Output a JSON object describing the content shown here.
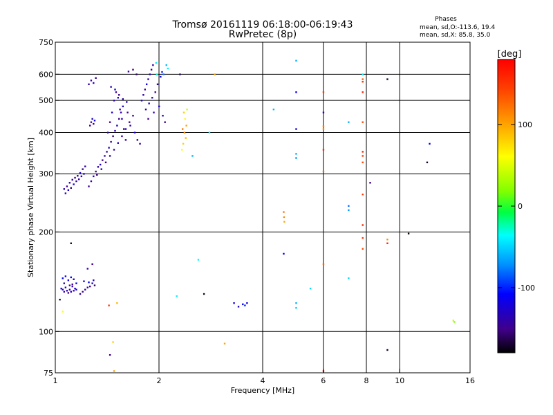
{
  "colors": {
    "frame": "#000000",
    "background": "#ffffff"
  },
  "chart_data": {
    "type": "scatter",
    "title": "Tromsø 20161119 06:18:00-06:19:43",
    "subtitle": "RwPretec (8p)",
    "xlabel": "Frequency [MHz]",
    "ylabel": "Stationary phase Virtual Height [km]",
    "x_scale": "log",
    "y_scale": "log",
    "xlim": [
      1,
      16
    ],
    "ylim": [
      75,
      750
    ],
    "x_ticks": [
      "1",
      "2",
      "4",
      "6",
      "8",
      "10",
      "16"
    ],
    "x_tick_values": [
      1,
      2,
      4,
      6,
      8,
      10,
      16
    ],
    "x_gridlines": [
      2,
      4,
      6,
      8,
      10
    ],
    "y_ticks": [
      "75",
      "100",
      "200",
      "300",
      "400",
      "500",
      "600",
      "750"
    ],
    "y_tick_values": [
      75,
      100,
      200,
      300,
      400,
      500,
      600,
      750
    ],
    "y_gridlines": [
      100,
      200,
      300,
      400,
      500,
      600
    ],
    "legend": {
      "title": "Phases",
      "lines": [
        "mean, sd,O:-113.6, 19.4",
        "mean, sd,X:  85.8, 35.0"
      ]
    },
    "colorbar": {
      "label": "[deg]",
      "ticks": [
        "100",
        "0",
        "-100"
      ],
      "tick_values": [
        100,
        0,
        -100
      ],
      "range": [
        -180,
        180
      ],
      "colormap": "rainbow"
    },
    "points": [
      {
        "f": 1.03,
        "h": 125,
        "p": -170
      },
      {
        "f": 1.04,
        "h": 135,
        "p": -135
      },
      {
        "f": 1.05,
        "h": 134,
        "p": -135
      },
      {
        "f": 1.06,
        "h": 132,
        "p": -140
      },
      {
        "f": 1.07,
        "h": 136,
        "p": -130
      },
      {
        "f": 1.08,
        "h": 133,
        "p": -140
      },
      {
        "f": 1.09,
        "h": 131,
        "p": -150
      },
      {
        "f": 1.1,
        "h": 134,
        "p": -135
      },
      {
        "f": 1.11,
        "h": 132,
        "p": -130
      },
      {
        "f": 1.12,
        "h": 137,
        "p": -140
      },
      {
        "f": 1.13,
        "h": 133,
        "p": -145
      },
      {
        "f": 1.14,
        "h": 135,
        "p": -130
      },
      {
        "f": 1.15,
        "h": 134,
        "p": -120
      },
      {
        "f": 1.05,
        "h": 145,
        "p": -110
      },
      {
        "f": 1.07,
        "h": 147,
        "p": -115
      },
      {
        "f": 1.09,
        "h": 143,
        "p": -120
      },
      {
        "f": 1.11,
        "h": 146,
        "p": -110
      },
      {
        "f": 1.13,
        "h": 144,
        "p": -125
      },
      {
        "f": 1.15,
        "h": 140,
        "p": -115
      },
      {
        "f": 1.06,
        "h": 140,
        "p": -140
      },
      {
        "f": 1.1,
        "h": 138,
        "p": -145
      },
      {
        "f": 1.12,
        "h": 139,
        "p": -150
      },
      {
        "f": 1.18,
        "h": 130,
        "p": -140
      },
      {
        "f": 1.2,
        "h": 132,
        "p": -150
      },
      {
        "f": 1.22,
        "h": 134,
        "p": -145
      },
      {
        "f": 1.24,
        "h": 136,
        "p": -130
      },
      {
        "f": 1.26,
        "h": 137,
        "p": -150
      },
      {
        "f": 1.28,
        "h": 140,
        "p": -130
      },
      {
        "f": 1.3,
        "h": 138,
        "p": -160
      },
      {
        "f": 1.21,
        "h": 142,
        "p": -120
      },
      {
        "f": 1.25,
        "h": 141,
        "p": -110
      },
      {
        "f": 1.29,
        "h": 143,
        "p": -130
      },
      {
        "f": 1.24,
        "h": 155,
        "p": -140
      },
      {
        "f": 1.28,
        "h": 160,
        "p": -150
      },
      {
        "f": 1.11,
        "h": 185,
        "p": -170
      },
      {
        "f": 1.05,
        "h": 115,
        "p": 60
      },
      {
        "f": 1.43,
        "h": 120,
        "p": 150
      },
      {
        "f": 1.51,
        "h": 122,
        "p": 90
      },
      {
        "f": 1.44,
        "h": 85,
        "p": -150
      },
      {
        "f": 1.47,
        "h": 93,
        "p": 80
      },
      {
        "f": 1.48,
        "h": 76,
        "p": 100
      },
      {
        "f": 1.06,
        "h": 270,
        "p": -140
      },
      {
        "f": 1.07,
        "h": 262,
        "p": -130
      },
      {
        "f": 1.08,
        "h": 275,
        "p": -150
      },
      {
        "f": 1.09,
        "h": 268,
        "p": -120
      },
      {
        "f": 1.1,
        "h": 282,
        "p": -140
      },
      {
        "f": 1.11,
        "h": 272,
        "p": -160
      },
      {
        "f": 1.12,
        "h": 288,
        "p": -135
      },
      {
        "f": 1.13,
        "h": 279,
        "p": -125
      },
      {
        "f": 1.14,
        "h": 292,
        "p": -150
      },
      {
        "f": 1.15,
        "h": 285,
        "p": -140
      },
      {
        "f": 1.16,
        "h": 296,
        "p": -130
      },
      {
        "f": 1.17,
        "h": 289,
        "p": -145
      },
      {
        "f": 1.18,
        "h": 302,
        "p": -130
      },
      {
        "f": 1.19,
        "h": 295,
        "p": -140
      },
      {
        "f": 1.2,
        "h": 310,
        "p": -155
      },
      {
        "f": 1.21,
        "h": 300,
        "p": -130
      },
      {
        "f": 1.22,
        "h": 316,
        "p": -140
      },
      {
        "f": 1.26,
        "h": 420,
        "p": -140
      },
      {
        "f": 1.27,
        "h": 430,
        "p": -150
      },
      {
        "f": 1.28,
        "h": 440,
        "p": -130
      },
      {
        "f": 1.29,
        "h": 425,
        "p": -145
      },
      {
        "f": 1.3,
        "h": 435,
        "p": -120
      },
      {
        "f": 1.25,
        "h": 560,
        "p": -140
      },
      {
        "f": 1.27,
        "h": 575,
        "p": -150
      },
      {
        "f": 1.29,
        "h": 565,
        "p": -130
      },
      {
        "f": 1.31,
        "h": 585,
        "p": -145
      },
      {
        "f": 1.25,
        "h": 275,
        "p": -150
      },
      {
        "f": 1.27,
        "h": 285,
        "p": -140
      },
      {
        "f": 1.29,
        "h": 295,
        "p": -130
      },
      {
        "f": 1.31,
        "h": 305,
        "p": -150
      },
      {
        "f": 1.33,
        "h": 315,
        "p": -140
      },
      {
        "f": 1.35,
        "h": 320,
        "p": -130
      },
      {
        "f": 1.37,
        "h": 330,
        "p": -150
      },
      {
        "f": 1.39,
        "h": 340,
        "p": -140
      },
      {
        "f": 1.41,
        "h": 350,
        "p": -150
      },
      {
        "f": 1.43,
        "h": 360,
        "p": -130
      },
      {
        "f": 1.45,
        "h": 375,
        "p": -145
      },
      {
        "f": 1.47,
        "h": 390,
        "p": -160
      },
      {
        "f": 1.49,
        "h": 405,
        "p": -140
      },
      {
        "f": 1.51,
        "h": 420,
        "p": -130
      },
      {
        "f": 1.53,
        "h": 440,
        "p": -150
      },
      {
        "f": 1.55,
        "h": 460,
        "p": -140
      },
      {
        "f": 1.57,
        "h": 480,
        "p": -130
      },
      {
        "f": 1.32,
        "h": 298,
        "p": -155
      },
      {
        "f": 1.36,
        "h": 310,
        "p": -135
      },
      {
        "f": 1.4,
        "h": 325,
        "p": -150
      },
      {
        "f": 1.44,
        "h": 340,
        "p": -140
      },
      {
        "f": 1.48,
        "h": 355,
        "p": -150
      },
      {
        "f": 1.52,
        "h": 372,
        "p": -135
      },
      {
        "f": 1.56,
        "h": 390,
        "p": -145
      },
      {
        "f": 1.6,
        "h": 410,
        "p": -130
      },
      {
        "f": 1.64,
        "h": 430,
        "p": -150
      },
      {
        "f": 1.68,
        "h": 450,
        "p": -140
      },
      {
        "f": 1.42,
        "h": 400,
        "p": -140
      },
      {
        "f": 1.44,
        "h": 430,
        "p": -150
      },
      {
        "f": 1.46,
        "h": 460,
        "p": -130
      },
      {
        "f": 1.48,
        "h": 500,
        "p": -140
      },
      {
        "f": 1.5,
        "h": 530,
        "p": -150
      },
      {
        "f": 1.52,
        "h": 510,
        "p": -120
      },
      {
        "f": 1.54,
        "h": 470,
        "p": -140
      },
      {
        "f": 1.56,
        "h": 440,
        "p": -130
      },
      {
        "f": 1.58,
        "h": 410,
        "p": -150
      },
      {
        "f": 1.6,
        "h": 380,
        "p": -140
      },
      {
        "f": 1.45,
        "h": 550,
        "p": -140
      },
      {
        "f": 1.49,
        "h": 540,
        "p": -120
      },
      {
        "f": 1.53,
        "h": 520,
        "p": -150
      },
      {
        "f": 1.57,
        "h": 505,
        "p": -140
      },
      {
        "f": 1.61,
        "h": 495,
        "p": -130
      },
      {
        "f": 1.62,
        "h": 460,
        "p": -150
      },
      {
        "f": 1.65,
        "h": 420,
        "p": -140
      },
      {
        "f": 1.7,
        "h": 400,
        "p": -130
      },
      {
        "f": 1.73,
        "h": 380,
        "p": -150
      },
      {
        "f": 1.76,
        "h": 370,
        "p": -140
      },
      {
        "f": 1.78,
        "h": 500,
        "p": -130
      },
      {
        "f": 1.8,
        "h": 520,
        "p": -140
      },
      {
        "f": 1.82,
        "h": 540,
        "p": -150
      },
      {
        "f": 1.84,
        "h": 560,
        "p": -120
      },
      {
        "f": 1.86,
        "h": 580,
        "p": -140
      },
      {
        "f": 1.88,
        "h": 600,
        "p": -130
      },
      {
        "f": 1.9,
        "h": 620,
        "p": -150
      },
      {
        "f": 1.92,
        "h": 640,
        "p": -140
      },
      {
        "f": 1.83,
        "h": 470,
        "p": -140
      },
      {
        "f": 1.87,
        "h": 490,
        "p": -130
      },
      {
        "f": 1.91,
        "h": 510,
        "p": -140
      },
      {
        "f": 1.95,
        "h": 530,
        "p": -150
      },
      {
        "f": 1.98,
        "h": 560,
        "p": -130
      },
      {
        "f": 2.02,
        "h": 590,
        "p": -110
      },
      {
        "f": 2.04,
        "h": 610,
        "p": -100
      },
      {
        "f": 2.06,
        "h": 600,
        "p": -80
      },
      {
        "f": 1.86,
        "h": 440,
        "p": -150
      },
      {
        "f": 1.93,
        "h": 460,
        "p": -140
      },
      {
        "f": 2.0,
        "h": 480,
        "p": -130
      },
      {
        "f": 2.05,
        "h": 450,
        "p": -140
      },
      {
        "f": 2.08,
        "h": 430,
        "p": -150
      },
      {
        "f": 1.72,
        "h": 600,
        "p": -160
      },
      {
        "f": 1.68,
        "h": 620,
        "p": -150
      },
      {
        "f": 1.63,
        "h": 612,
        "p": -145
      },
      {
        "f": 2.1,
        "h": 640,
        "p": -60
      },
      {
        "f": 2.12,
        "h": 625,
        "p": -40
      },
      {
        "f": 1.96,
        "h": 650,
        "p": -40
      },
      {
        "f": 1.97,
        "h": 600,
        "p": -30
      },
      {
        "f": 2.36,
        "h": 460,
        "p": 80
      },
      {
        "f": 2.38,
        "h": 440,
        "p": 60
      },
      {
        "f": 2.4,
        "h": 420,
        "p": 100
      },
      {
        "f": 2.37,
        "h": 400,
        "p": 110
      },
      {
        "f": 2.39,
        "h": 385,
        "p": 90
      },
      {
        "f": 2.35,
        "h": 370,
        "p": 80
      },
      {
        "f": 2.33,
        "h": 355,
        "p": 60
      },
      {
        "f": 2.41,
        "h": 470,
        "p": 40
      },
      {
        "f": 2.34,
        "h": 410,
        "p": 120
      },
      {
        "f": 2.3,
        "h": 600,
        "p": -160
      },
      {
        "f": 2.8,
        "h": 400,
        "p": -40
      },
      {
        "f": 2.5,
        "h": 340,
        "p": -60
      },
      {
        "f": 2.6,
        "h": 165,
        "p": -40
      },
      {
        "f": 2.7,
        "h": 130,
        "p": -170
      },
      {
        "f": 2.25,
        "h": 128,
        "p": -40
      },
      {
        "f": 2.9,
        "h": 600,
        "p": 100
      },
      {
        "f": 3.1,
        "h": 92,
        "p": 100
      },
      {
        "f": 3.3,
        "h": 122,
        "p": -120
      },
      {
        "f": 3.4,
        "h": 119,
        "p": -130
      },
      {
        "f": 3.5,
        "h": 121,
        "p": -110
      },
      {
        "f": 3.55,
        "h": 120,
        "p": -100
      },
      {
        "f": 3.6,
        "h": 122,
        "p": -120
      },
      {
        "f": 4.3,
        "h": 470,
        "p": -60
      },
      {
        "f": 4.6,
        "h": 230,
        "p": 120
      },
      {
        "f": 4.61,
        "h": 222,
        "p": 110
      },
      {
        "f": 4.62,
        "h": 215,
        "p": 100
      },
      {
        "f": 4.6,
        "h": 172,
        "p": -110
      },
      {
        "f": 5.0,
        "h": 660,
        "p": -60
      },
      {
        "f": 5.0,
        "h": 530,
        "p": -110
      },
      {
        "f": 5.0,
        "h": 410,
        "p": -120
      },
      {
        "f": 5.0,
        "h": 345,
        "p": -60
      },
      {
        "f": 5.0,
        "h": 335,
        "p": -70
      },
      {
        "f": 5.0,
        "h": 122,
        "p": -60
      },
      {
        "f": 5.0,
        "h": 118,
        "p": -50
      },
      {
        "f": 5.5,
        "h": 135,
        "p": -50
      },
      {
        "f": 6.0,
        "h": 530,
        "p": 150
      },
      {
        "f": 6.0,
        "h": 460,
        "p": -140
      },
      {
        "f": 6.0,
        "h": 418,
        "p": 120
      },
      {
        "f": 6.0,
        "h": 410,
        "p": 110
      },
      {
        "f": 6.0,
        "h": 355,
        "p": 160
      },
      {
        "f": 6.0,
        "h": 305,
        "p": 130
      },
      {
        "f": 6.0,
        "h": 160,
        "p": 130
      },
      {
        "f": 6.0,
        "h": 76,
        "p": 170
      },
      {
        "f": 7.1,
        "h": 430,
        "p": -60
      },
      {
        "f": 7.1,
        "h": 240,
        "p": -80
      },
      {
        "f": 7.1,
        "h": 233,
        "p": -70
      },
      {
        "f": 7.1,
        "h": 145,
        "p": -50
      },
      {
        "f": 7.8,
        "h": 580,
        "p": 130
      },
      {
        "f": 7.8,
        "h": 570,
        "p": 150
      },
      {
        "f": 7.8,
        "h": 530,
        "p": 160
      },
      {
        "f": 7.8,
        "h": 430,
        "p": 140
      },
      {
        "f": 7.8,
        "h": 350,
        "p": 160
      },
      {
        "f": 7.8,
        "h": 340,
        "p": 150
      },
      {
        "f": 7.8,
        "h": 325,
        "p": 140
      },
      {
        "f": 7.8,
        "h": 260,
        "p": 150
      },
      {
        "f": 7.8,
        "h": 210,
        "p": 160
      },
      {
        "f": 7.8,
        "h": 192,
        "p": 150
      },
      {
        "f": 7.8,
        "h": 178,
        "p": 140
      },
      {
        "f": 7.8,
        "h": 600,
        "p": -40
      },
      {
        "f": 8.2,
        "h": 282,
        "p": -150
      },
      {
        "f": 9.2,
        "h": 580,
        "p": -170
      },
      {
        "f": 9.2,
        "h": 190,
        "p": 110
      },
      {
        "f": 9.2,
        "h": 185,
        "p": 160
      },
      {
        "f": 9.2,
        "h": 88,
        "p": -170
      },
      {
        "f": 10.6,
        "h": 198,
        "p": -175
      },
      {
        "f": 12.2,
        "h": 370,
        "p": -110
      },
      {
        "f": 12.0,
        "h": 325,
        "p": -170
      },
      {
        "f": 14.3,
        "h": 108,
        "p": 40
      },
      {
        "f": 14.4,
        "h": 107,
        "p": 20
      }
    ]
  }
}
